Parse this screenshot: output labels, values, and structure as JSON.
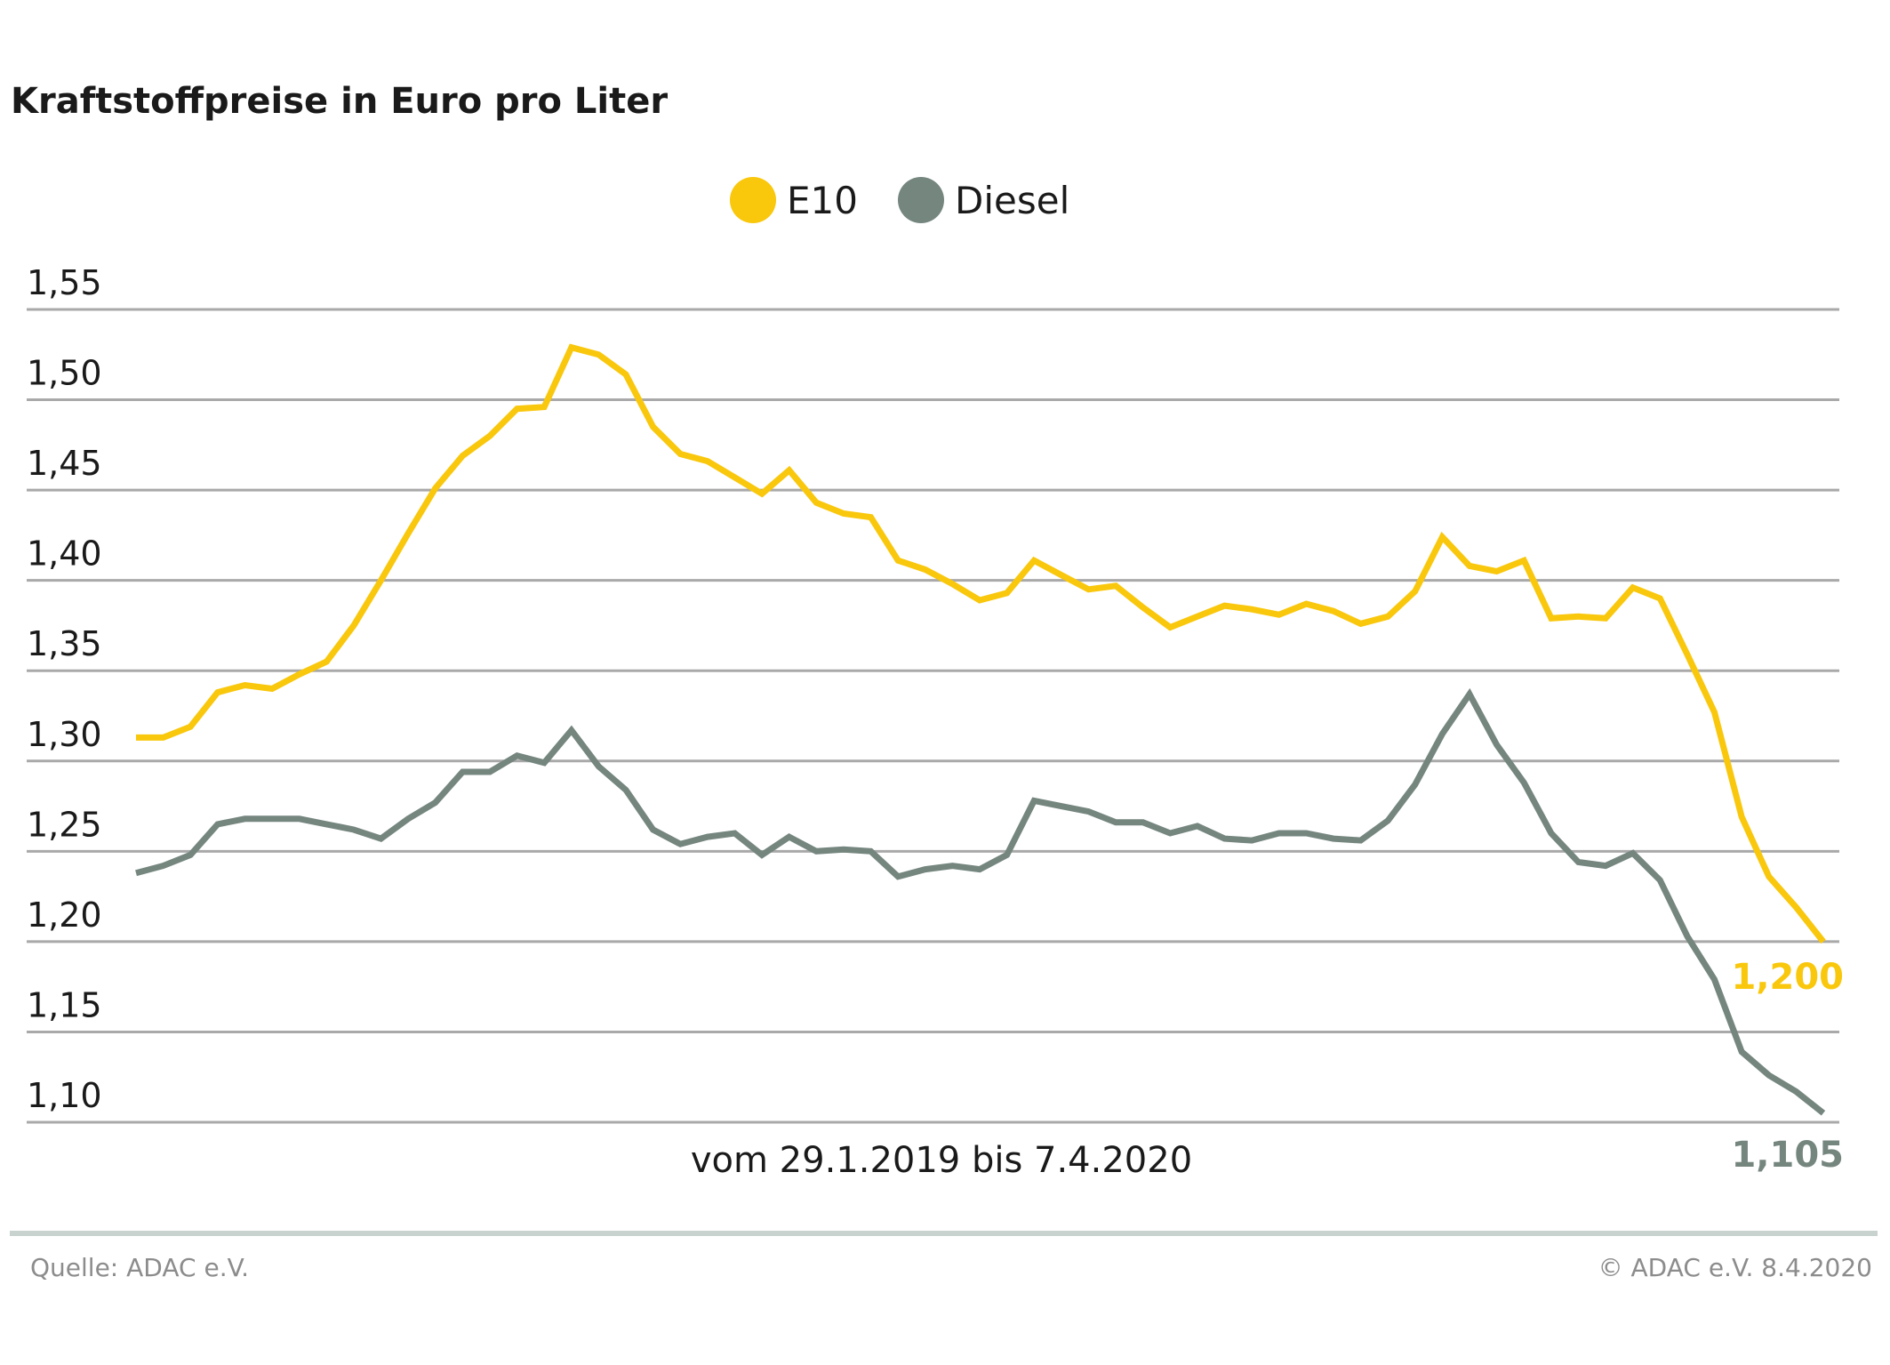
{
  "chart_data": {
    "type": "line",
    "title": "Kraftstoffpreise in Euro pro Liter",
    "xlabel": "vom 29.1.2019 bis 7.4.2020",
    "ylabel": "",
    "ylim": [
      1.1,
      1.55
    ],
    "yticks": [
      1.1,
      1.15,
      1.2,
      1.25,
      1.3,
      1.35,
      1.4,
      1.45,
      1.5,
      1.55
    ],
    "ytick_labels": [
      "1,10",
      "1,15",
      "1,20",
      "1,25",
      "1,30",
      "1,35",
      "1,40",
      "1,45",
      "1,50",
      "1,55"
    ],
    "grid": true,
    "legend_position": "top-center",
    "series": [
      {
        "name": "E10",
        "color": "#f9c70c",
        "end_label": "1,200",
        "values": [
          1.313,
          1.313,
          1.319,
          1.338,
          1.342,
          1.34,
          1.348,
          1.355,
          1.375,
          1.4,
          1.426,
          1.451,
          1.469,
          1.48,
          1.495,
          1.496,
          1.529,
          1.525,
          1.514,
          1.485,
          1.47,
          1.466,
          1.457,
          1.448,
          1.461,
          1.443,
          1.437,
          1.435,
          1.411,
          1.406,
          1.398,
          1.389,
          1.393,
          1.411,
          1.403,
          1.395,
          1.397,
          1.385,
          1.374,
          1.38,
          1.386,
          1.384,
          1.381,
          1.387,
          1.383,
          1.376,
          1.38,
          1.394,
          1.424,
          1.408,
          1.405,
          1.411,
          1.379,
          1.38,
          1.379,
          1.396,
          1.39,
          1.359,
          1.327,
          1.269,
          1.236,
          1.219,
          1.2
        ]
      },
      {
        "name": "Diesel",
        "color": "#75867f",
        "end_label": "1,105",
        "values": [
          1.238,
          1.242,
          1.248,
          1.265,
          1.268,
          1.268,
          1.268,
          1.265,
          1.262,
          1.257,
          1.268,
          1.277,
          1.294,
          1.294,
          1.303,
          1.299,
          1.317,
          1.297,
          1.284,
          1.262,
          1.254,
          1.258,
          1.26,
          1.248,
          1.258,
          1.25,
          1.251,
          1.25,
          1.236,
          1.24,
          1.242,
          1.24,
          1.248,
          1.278,
          1.275,
          1.272,
          1.266,
          1.266,
          1.26,
          1.264,
          1.257,
          1.256,
          1.26,
          1.26,
          1.257,
          1.256,
          1.267,
          1.287,
          1.315,
          1.337,
          1.309,
          1.288,
          1.26,
          1.244,
          1.242,
          1.249,
          1.234,
          1.203,
          1.179,
          1.139,
          1.126,
          1.117,
          1.105
        ]
      }
    ]
  },
  "footer": {
    "source": "Quelle: ADAC e.V.",
    "copyright": "© ADAC e.V. 8.4.2020"
  },
  "colors": {
    "gridline": "#a9a9a9",
    "separator": "#c8d3cf"
  }
}
